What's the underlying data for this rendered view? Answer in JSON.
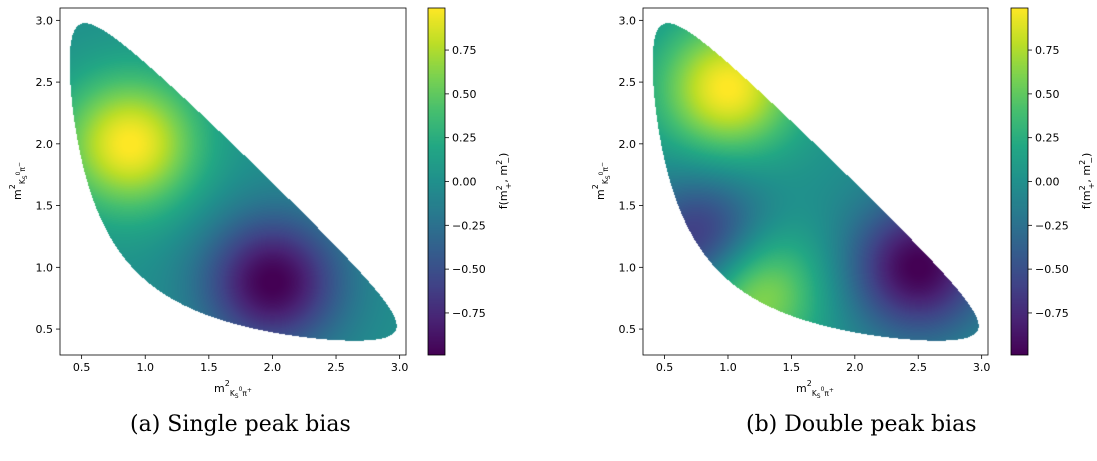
{
  "chart_data": [
    {
      "type": "heatmap",
      "title": "",
      "caption": "(a) Single peak bias",
      "xlabel": "m²_{K⁰_S π⁺}",
      "ylabel": "m²_{K⁰_S π⁻}",
      "colorbar_label": "f(m²₊, m²₋)",
      "xlim": [
        0.33,
        3.05
      ],
      "ylim": [
        0.29,
        3.1
      ],
      "x_ticks": [
        "0.5",
        "1.0",
        "1.5",
        "2.0",
        "2.5",
        "3.0"
      ],
      "y_ticks": [
        "0.5",
        "1.0",
        "1.5",
        "2.0",
        "2.5",
        "3.0"
      ],
      "clim": [
        -0.99,
        0.99
      ],
      "cbar_ticks": [
        "0.75",
        "0.50",
        "0.25",
        "0.00",
        "−0.25",
        "−0.50",
        "−0.75"
      ],
      "colormap": "viridis",
      "region": "Dalitz plot of D0 -> K0S pi+ pi-",
      "peaks": [
        {
          "x": 0.88,
          "y": 2.0,
          "amplitude": 1.0
        },
        {
          "x": 2.0,
          "y": 0.88,
          "amplitude": -1.0
        }
      ]
    },
    {
      "type": "heatmap",
      "title": "",
      "caption": "(b) Double peak bias",
      "xlabel": "m²_{K⁰_S π⁺}",
      "ylabel": "m²_{K⁰_S π⁻}",
      "colorbar_label": "f(m²₊, m²₋)",
      "xlim": [
        0.33,
        3.05
      ],
      "ylim": [
        0.29,
        3.1
      ],
      "x_ticks": [
        "0.5",
        "1.0",
        "1.5",
        "2.0",
        "2.5",
        "3.0"
      ],
      "y_ticks": [
        "0.5",
        "1.0",
        "1.5",
        "2.0",
        "2.5",
        "3.0"
      ],
      "clim": [
        -0.99,
        0.99
      ],
      "cbar_ticks": [
        "0.75",
        "0.50",
        "0.25",
        "0.00",
        "−0.25",
        "−0.50",
        "−0.75"
      ],
      "colormap": "viridis",
      "region": "Dalitz plot of D0 -> K0S pi+ pi-",
      "peaks": [
        {
          "x": 1.0,
          "y": 2.45,
          "amplitude": 1.0
        },
        {
          "x": 1.15,
          "y": 0.85,
          "amplitude": 1.0
        },
        {
          "x": 2.5,
          "y": 1.0,
          "amplitude": -1.0
        },
        {
          "x": 0.85,
          "y": 1.15,
          "amplitude": -1.0
        }
      ]
    }
  ]
}
